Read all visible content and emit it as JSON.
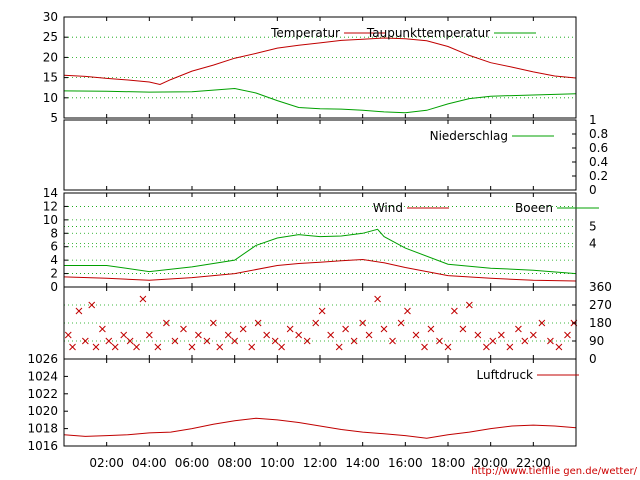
{
  "credit_url": "http://www.tiefflie gen.de/wetter/",
  "time_axis": {
    "ticks": [
      "02:00",
      "04:00",
      "06:00",
      "08:00",
      "10:00",
      "12:00",
      "14:00",
      "16:00",
      "18:00",
      "20:00",
      "22:00"
    ],
    "tick_hours": [
      2,
      4,
      6,
      8,
      10,
      12,
      14,
      16,
      18,
      20,
      22
    ],
    "range": [
      0,
      24
    ]
  },
  "colors": {
    "red": "#c00000",
    "green": "#00a000",
    "grid": "#00a000",
    "axis": "#000000"
  },
  "chart_data": [
    {
      "type": "line",
      "ylim": [
        5,
        30
      ],
      "yticks": [
        "5",
        "10",
        "15",
        "20",
        "25",
        "30"
      ],
      "ytick_values": [
        5,
        10,
        15,
        20,
        25,
        30
      ],
      "grid": true,
      "legend": "top-right",
      "series": [
        {
          "name": "Temperatur",
          "color": "#c00000",
          "points": [
            [
              0,
              15.6
            ],
            [
              1,
              15.3
            ],
            [
              2,
              14.8
            ],
            [
              3,
              14.4
            ],
            [
              4,
              13.9
            ],
            [
              4.5,
              13.3
            ],
            [
              5,
              14.5
            ],
            [
              6,
              16.6
            ],
            [
              7,
              18.1
            ],
            [
              8,
              19.8
            ],
            [
              9,
              21.0
            ],
            [
              10,
              22.3
            ],
            [
              11,
              23.0
            ],
            [
              12,
              23.6
            ],
            [
              13,
              24.2
            ],
            [
              14,
              24.5
            ],
            [
              15,
              24.8
            ],
            [
              16,
              24.6
            ],
            [
              17,
              24.1
            ],
            [
              18,
              22.7
            ],
            [
              19,
              20.5
            ],
            [
              20,
              18.7
            ],
            [
              21,
              17.6
            ],
            [
              22,
              16.4
            ],
            [
              23,
              15.4
            ],
            [
              24,
              14.9
            ]
          ]
        },
        {
          "name": "Taupunkttemperatur",
          "color": "#00a000",
          "points": [
            [
              0,
              11.7
            ],
            [
              2,
              11.6
            ],
            [
              4,
              11.4
            ],
            [
              6,
              11.5
            ],
            [
              7,
              11.9
            ],
            [
              8,
              12.3
            ],
            [
              9,
              11.2
            ],
            [
              10,
              9.3
            ],
            [
              11,
              7.6
            ],
            [
              12,
              7.3
            ],
            [
              13,
              7.2
            ],
            [
              14,
              6.9
            ],
            [
              15,
              6.5
            ],
            [
              16,
              6.3
            ],
            [
              17,
              6.9
            ],
            [
              18,
              8.5
            ],
            [
              19,
              9.8
            ],
            [
              20,
              10.4
            ],
            [
              22,
              10.7
            ],
            [
              24,
              11.0
            ]
          ]
        }
      ]
    },
    {
      "type": "line",
      "ylim": [
        0,
        1
      ],
      "yticks": [
        "0",
        "0.2",
        "0.4",
        "0.6",
        "0.8",
        "1"
      ],
      "ytick_values": [
        0,
        0.2,
        0.4,
        0.6,
        0.8,
        1
      ],
      "legend": "top-right",
      "series": [
        {
          "name": "Niederschlag",
          "color": "#00a000",
          "points": [
            [
              0,
              0
            ],
            [
              24,
              0
            ]
          ]
        }
      ]
    },
    {
      "type": "line",
      "ylim": [
        0,
        14
      ],
      "yticks": [
        "0",
        "2",
        "4",
        "6",
        "8",
        "10",
        "12",
        "14"
      ],
      "ytick_values": [
        0,
        2,
        4,
        6,
        8,
        10,
        12,
        14
      ],
      "right_ticks": [
        "4",
        "5"
      ],
      "right_tick_values": [
        6.5,
        9
      ],
      "grid": true,
      "legend": "top-right",
      "series": [
        {
          "name": "Wind",
          "color": "#c00000",
          "points": [
            [
              0,
              1.5
            ],
            [
              2,
              1.3
            ],
            [
              4,
              1.0
            ],
            [
              6,
              1.4
            ],
            [
              8,
              2.0
            ],
            [
              10,
              3.2
            ],
            [
              11,
              3.5
            ],
            [
              12,
              3.7
            ],
            [
              13,
              3.9
            ],
            [
              14,
              4.1
            ],
            [
              15,
              3.6
            ],
            [
              16,
              2.9
            ],
            [
              18,
              1.7
            ],
            [
              20,
              1.3
            ],
            [
              22,
              1.0
            ],
            [
              24,
              0.9
            ]
          ]
        },
        {
          "name": "Boeen",
          "color": "#00a000",
          "points": [
            [
              0,
              3.2
            ],
            [
              2,
              3.2
            ],
            [
              4,
              2.3
            ],
            [
              6,
              3.0
            ],
            [
              8,
              4.0
            ],
            [
              9,
              6.2
            ],
            [
              10,
              7.3
            ],
            [
              11,
              7.8
            ],
            [
              12,
              7.5
            ],
            [
              13,
              7.6
            ],
            [
              14,
              8.0
            ],
            [
              14.7,
              8.6
            ],
            [
              15,
              7.5
            ],
            [
              16,
              5.8
            ],
            [
              18,
              3.4
            ],
            [
              20,
              2.8
            ],
            [
              22,
              2.5
            ],
            [
              24,
              2.0
            ]
          ]
        }
      ]
    },
    {
      "type": "scatter",
      "ylim": [
        0,
        360
      ],
      "yticks": [
        "0",
        "90",
        "180",
        "270",
        "360"
      ],
      "ytick_values": [
        0,
        90,
        180,
        270,
        360
      ],
      "grid": true,
      "series": [
        {
          "color": "#c00000",
          "marker": "x",
          "points": [
            [
              0.2,
              120
            ],
            [
              0.4,
              60
            ],
            [
              0.7,
              240
            ],
            [
              1.0,
              90
            ],
            [
              1.3,
              270
            ],
            [
              1.5,
              60
            ],
            [
              1.8,
              150
            ],
            [
              2.1,
              90
            ],
            [
              2.4,
              60
            ],
            [
              2.8,
              120
            ],
            [
              3.1,
              90
            ],
            [
              3.4,
              60
            ],
            [
              3.7,
              300
            ],
            [
              4.0,
              120
            ],
            [
              4.4,
              60
            ],
            [
              4.8,
              180
            ],
            [
              5.2,
              90
            ],
            [
              5.6,
              150
            ],
            [
              6.0,
              60
            ],
            [
              6.3,
              120
            ],
            [
              6.7,
              90
            ],
            [
              7.0,
              180
            ],
            [
              7.3,
              60
            ],
            [
              7.7,
              120
            ],
            [
              8.0,
              90
            ],
            [
              8.4,
              150
            ],
            [
              8.8,
              60
            ],
            [
              9.1,
              180
            ],
            [
              9.5,
              120
            ],
            [
              9.9,
              90
            ],
            [
              10.2,
              60
            ],
            [
              10.6,
              150
            ],
            [
              11.0,
              120
            ],
            [
              11.4,
              90
            ],
            [
              11.8,
              180
            ],
            [
              12.1,
              240
            ],
            [
              12.5,
              120
            ],
            [
              12.9,
              60
            ],
            [
              13.2,
              150
            ],
            [
              13.6,
              90
            ],
            [
              14.0,
              180
            ],
            [
              14.3,
              120
            ],
            [
              14.7,
              300
            ],
            [
              15.0,
              150
            ],
            [
              15.4,
              90
            ],
            [
              15.8,
              180
            ],
            [
              16.1,
              240
            ],
            [
              16.5,
              120
            ],
            [
              16.9,
              60
            ],
            [
              17.2,
              150
            ],
            [
              17.6,
              90
            ],
            [
              18.0,
              60
            ],
            [
              18.3,
              240
            ],
            [
              18.7,
              150
            ],
            [
              19.0,
              270
            ],
            [
              19.4,
              120
            ],
            [
              19.8,
              60
            ],
            [
              20.1,
              90
            ],
            [
              20.5,
              120
            ],
            [
              20.9,
              60
            ],
            [
              21.3,
              150
            ],
            [
              21.6,
              90
            ],
            [
              22.0,
              120
            ],
            [
              22.4,
              180
            ],
            [
              22.8,
              90
            ],
            [
              23.2,
              60
            ],
            [
              23.6,
              120
            ],
            [
              23.9,
              180
            ]
          ]
        }
      ]
    },
    {
      "type": "line",
      "ylim": [
        1016,
        1026
      ],
      "yticks": [
        "1016",
        "1018",
        "1020",
        "1022",
        "1024",
        "1026"
      ],
      "ytick_values": [
        1016,
        1018,
        1020,
        1022,
        1024,
        1026
      ],
      "legend": "top-right",
      "series": [
        {
          "name": "Luftdruck",
          "color": "#c00000",
          "points": [
            [
              0,
              1017.3
            ],
            [
              1,
              1017.1
            ],
            [
              2,
              1017.2
            ],
            [
              3,
              1017.3
            ],
            [
              4,
              1017.5
            ],
            [
              5,
              1017.6
            ],
            [
              6,
              1018.0
            ],
            [
              7,
              1018.5
            ],
            [
              8,
              1018.9
            ],
            [
              9,
              1019.2
            ],
            [
              10,
              1019.0
            ],
            [
              11,
              1018.7
            ],
            [
              12,
              1018.3
            ],
            [
              13,
              1017.9
            ],
            [
              14,
              1017.6
            ],
            [
              15,
              1017.4
            ],
            [
              16,
              1017.2
            ],
            [
              17,
              1016.9
            ],
            [
              18,
              1017.3
            ],
            [
              19,
              1017.6
            ],
            [
              20,
              1018.0
            ],
            [
              21,
              1018.3
            ],
            [
              22,
              1018.4
            ],
            [
              23,
              1018.3
            ],
            [
              24,
              1018.1
            ]
          ]
        }
      ]
    }
  ]
}
